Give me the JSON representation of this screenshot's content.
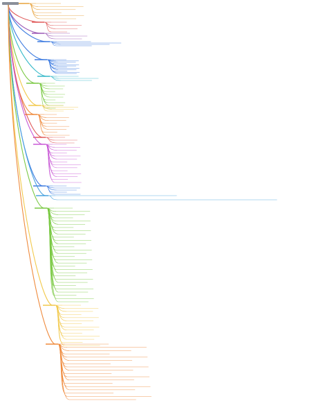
{
  "mindmap": {
    "root": {
      "label": "",
      "color": "#8a8f99"
    },
    "palette": [
      "#e8a33d",
      "#e05a5a",
      "#9b59b6",
      "#3d7be0",
      "#36b9c9",
      "#7ac943",
      "#f2c94c",
      "#ef8a3c",
      "#c95ad6",
      "#4aa3df"
    ],
    "branches": [
      {
        "id": "b1",
        "color": "#e8a33d",
        "children": 6
      },
      {
        "id": "b2",
        "color": "#e05a5a",
        "children": 4
      },
      {
        "id": "b3",
        "color": "#9b59b6",
        "children": 3
      },
      {
        "id": "b4",
        "color": "#3d7be0",
        "children": 4
      },
      {
        "id": "b5",
        "color": "#3d7be0",
        "children": 12
      },
      {
        "id": "b6",
        "color": "#36b9c9",
        "children": 3
      },
      {
        "id": "b7",
        "color": "#7ac943",
        "children": 10
      },
      {
        "id": "b8",
        "color": "#f2c94c",
        "children": 4
      },
      {
        "id": "b9",
        "color": "#ef8a3c",
        "children": 8
      },
      {
        "id": "b10",
        "color": "#e05a5a",
        "children": 3
      },
      {
        "id": "b11",
        "color": "#c95ad6",
        "children": 14
      },
      {
        "id": "b12",
        "color": "#3d7be0",
        "children": 5
      },
      {
        "id": "b13",
        "color": "#4aa3df",
        "children": 2
      },
      {
        "id": "b14",
        "color": "#7ac943",
        "children": 30
      },
      {
        "id": "b15",
        "color": "#f2c94c",
        "children": 14
      },
      {
        "id": "b16",
        "color": "#ef8a3c",
        "children": 18
      }
    ]
  }
}
